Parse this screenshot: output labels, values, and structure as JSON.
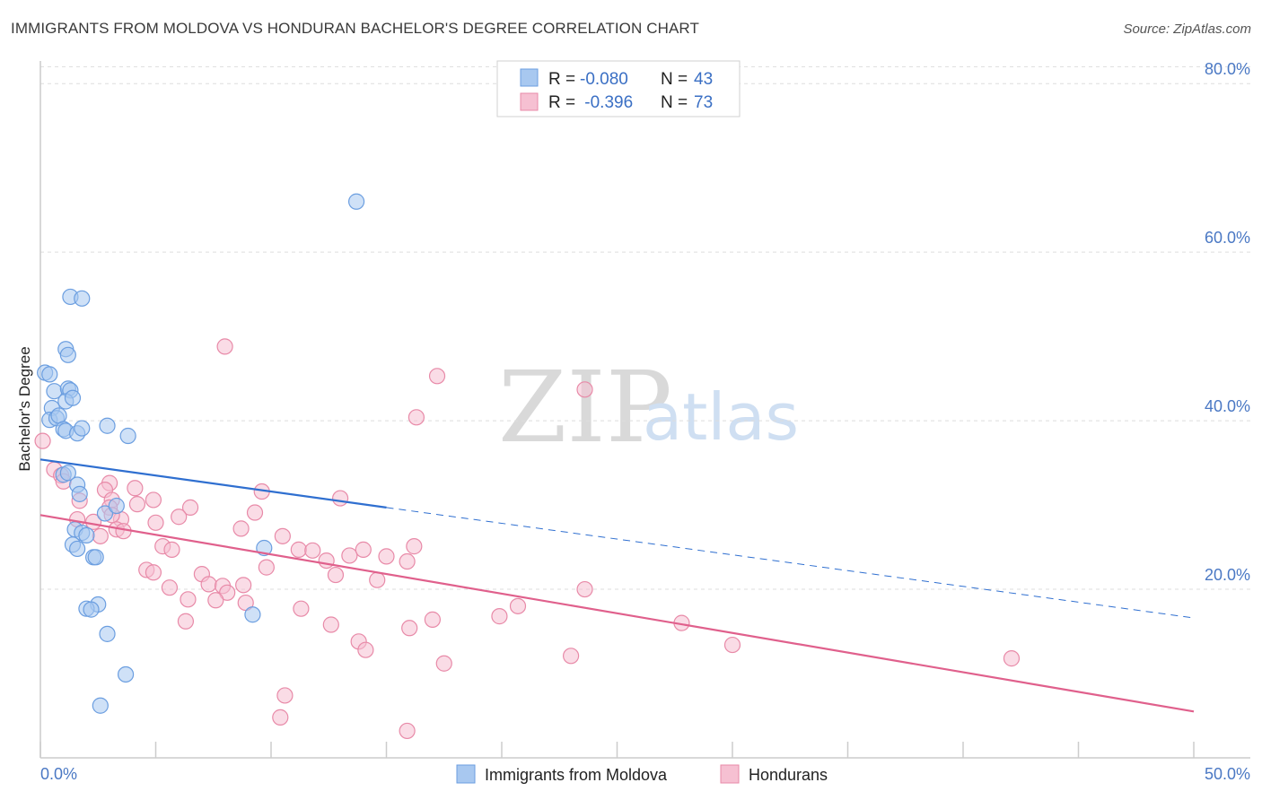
{
  "title": "IMMIGRANTS FROM MOLDOVA VS HONDURAN BACHELOR'S DEGREE CORRELATION CHART",
  "source": "Source: ZipAtlas.com",
  "watermark": {
    "part1": "ZIP",
    "part2": "atlas"
  },
  "colors": {
    "blue_fill": "#a8c8f0",
    "blue_stroke": "#6b9ee0",
    "blue_line": "#2f6fd0",
    "pink_fill": "#f6c0d2",
    "pink_stroke": "#e88aa8",
    "pink_line": "#e0608c",
    "grid": "#dddddd",
    "tick_text": "#4a78c4"
  },
  "legend": {
    "rows": [
      {
        "r_label": "R = ",
        "r_value": "-0.080",
        "n_label": "N = ",
        "n_value": "43"
      },
      {
        "r_label": "R = ",
        "r_value": " -0.396",
        "n_label": "N = ",
        "n_value": "73"
      }
    ]
  },
  "chart_data": {
    "type": "scatter",
    "title": "IMMIGRANTS FROM MOLDOVA VS HONDURAN BACHELOR'S DEGREE CORRELATION CHART",
    "xlabel": "",
    "ylabel": "Bachelor's Degree",
    "xlim": [
      0,
      50
    ],
    "ylim": [
      0,
      83
    ],
    "x_tick_labels": {
      "min": "0.0%",
      "max": "50.0%"
    },
    "y_ticks": [
      {
        "value": 20,
        "label": "20.0%"
      },
      {
        "value": 40,
        "label": "40.0%"
      },
      {
        "value": 60,
        "label": "60.0%"
      },
      {
        "value": 80,
        "label": "80.0%"
      }
    ],
    "series": [
      {
        "name": "Immigrants from Moldova",
        "color": "blue",
        "trend": {
          "x0": 0,
          "y0": 35.4,
          "x_solid_end": 15,
          "y_solid_end": 29.7,
          "x1": 50,
          "y1": 16.6
        },
        "points": [
          [
            0.2,
            45.7
          ],
          [
            0.4,
            45.5
          ],
          [
            0.6,
            43.5
          ],
          [
            0.5,
            41.5
          ],
          [
            0.4,
            40.1
          ],
          [
            0.7,
            40.3
          ],
          [
            0.8,
            40.6
          ],
          [
            1.0,
            39.0
          ],
          [
            1.2,
            43.8
          ],
          [
            1.3,
            43.6
          ],
          [
            1.1,
            42.3
          ],
          [
            1.4,
            42.7
          ],
          [
            1.0,
            33.6
          ],
          [
            1.2,
            33.8
          ],
          [
            1.1,
            38.8
          ],
          [
            1.6,
            38.5
          ],
          [
            1.8,
            39.1
          ],
          [
            2.9,
            39.4
          ],
          [
            3.8,
            38.2
          ],
          [
            1.1,
            48.5
          ],
          [
            1.2,
            47.8
          ],
          [
            1.3,
            54.7
          ],
          [
            1.8,
            54.5
          ],
          [
            13.7,
            66.0
          ],
          [
            1.6,
            32.4
          ],
          [
            1.7,
            31.3
          ],
          [
            2.8,
            29.0
          ],
          [
            3.3,
            29.9
          ],
          [
            1.5,
            27.1
          ],
          [
            1.8,
            26.7
          ],
          [
            2.0,
            26.4
          ],
          [
            1.4,
            25.3
          ],
          [
            1.6,
            24.8
          ],
          [
            2.3,
            23.8
          ],
          [
            2.4,
            23.8
          ],
          [
            9.7,
            24.9
          ],
          [
            2.5,
            18.2
          ],
          [
            2.0,
            17.7
          ],
          [
            2.2,
            17.6
          ],
          [
            9.2,
            17.0
          ],
          [
            2.9,
            14.7
          ],
          [
            3.7,
            9.9
          ],
          [
            2.6,
            6.2
          ]
        ]
      },
      {
        "name": "Hondurans",
        "color": "pink",
        "trend": {
          "x0": 0,
          "y0": 28.8,
          "x1": 50,
          "y1": 5.5
        },
        "points": [
          [
            0.1,
            37.6
          ],
          [
            0.6,
            34.2
          ],
          [
            0.9,
            33.5
          ],
          [
            1.0,
            32.8
          ],
          [
            1.7,
            30.5
          ],
          [
            2.3,
            28.0
          ],
          [
            3.0,
            32.6
          ],
          [
            2.8,
            31.8
          ],
          [
            3.1,
            30.6
          ],
          [
            4.1,
            32.0
          ],
          [
            3.0,
            29.7
          ],
          [
            3.5,
            28.3
          ],
          [
            3.3,
            27.1
          ],
          [
            3.6,
            26.9
          ],
          [
            4.2,
            30.1
          ],
          [
            5.0,
            27.9
          ],
          [
            4.9,
            30.6
          ],
          [
            6.5,
            29.7
          ],
          [
            6.0,
            28.6
          ],
          [
            2.6,
            26.3
          ],
          [
            1.6,
            28.3
          ],
          [
            3.1,
            28.8
          ],
          [
            5.3,
            25.1
          ],
          [
            5.7,
            24.7
          ],
          [
            8.7,
            27.2
          ],
          [
            9.3,
            29.1
          ],
          [
            9.6,
            31.6
          ],
          [
            10.5,
            26.3
          ],
          [
            8.0,
            48.8
          ],
          [
            17.2,
            45.3
          ],
          [
            16.3,
            40.4
          ],
          [
            23.6,
            43.7
          ],
          [
            13.0,
            30.8
          ],
          [
            11.2,
            24.7
          ],
          [
            11.8,
            24.6
          ],
          [
            12.4,
            23.4
          ],
          [
            13.4,
            24.0
          ],
          [
            14.0,
            24.7
          ],
          [
            15.0,
            23.9
          ],
          [
            15.9,
            23.3
          ],
          [
            16.2,
            25.1
          ],
          [
            4.6,
            22.3
          ],
          [
            4.9,
            22.0
          ],
          [
            7.0,
            21.8
          ],
          [
            9.8,
            22.6
          ],
          [
            12.8,
            21.7
          ],
          [
            14.6,
            21.1
          ],
          [
            5.6,
            20.2
          ],
          [
            7.3,
            20.6
          ],
          [
            7.9,
            20.4
          ],
          [
            8.1,
            19.6
          ],
          [
            8.8,
            20.5
          ],
          [
            6.4,
            18.8
          ],
          [
            7.6,
            18.7
          ],
          [
            8.9,
            18.4
          ],
          [
            11.3,
            17.7
          ],
          [
            12.6,
            15.8
          ],
          [
            6.3,
            16.2
          ],
          [
            16.0,
            15.4
          ],
          [
            17.0,
            16.4
          ],
          [
            19.9,
            16.8
          ],
          [
            20.7,
            18.0
          ],
          [
            23.6,
            20.0
          ],
          [
            27.8,
            16.0
          ],
          [
            30.0,
            13.4
          ],
          [
            23.0,
            12.1
          ],
          [
            13.8,
            13.8
          ],
          [
            14.1,
            12.8
          ],
          [
            17.5,
            11.2
          ],
          [
            42.1,
            11.8
          ],
          [
            10.6,
            7.4
          ],
          [
            10.4,
            4.8
          ],
          [
            15.9,
            3.2
          ]
        ]
      }
    ]
  },
  "bottom_legend": {
    "items": [
      {
        "label": "Immigrants from Moldova",
        "color": "blue"
      },
      {
        "label": "Hondurans",
        "color": "pink"
      }
    ]
  }
}
